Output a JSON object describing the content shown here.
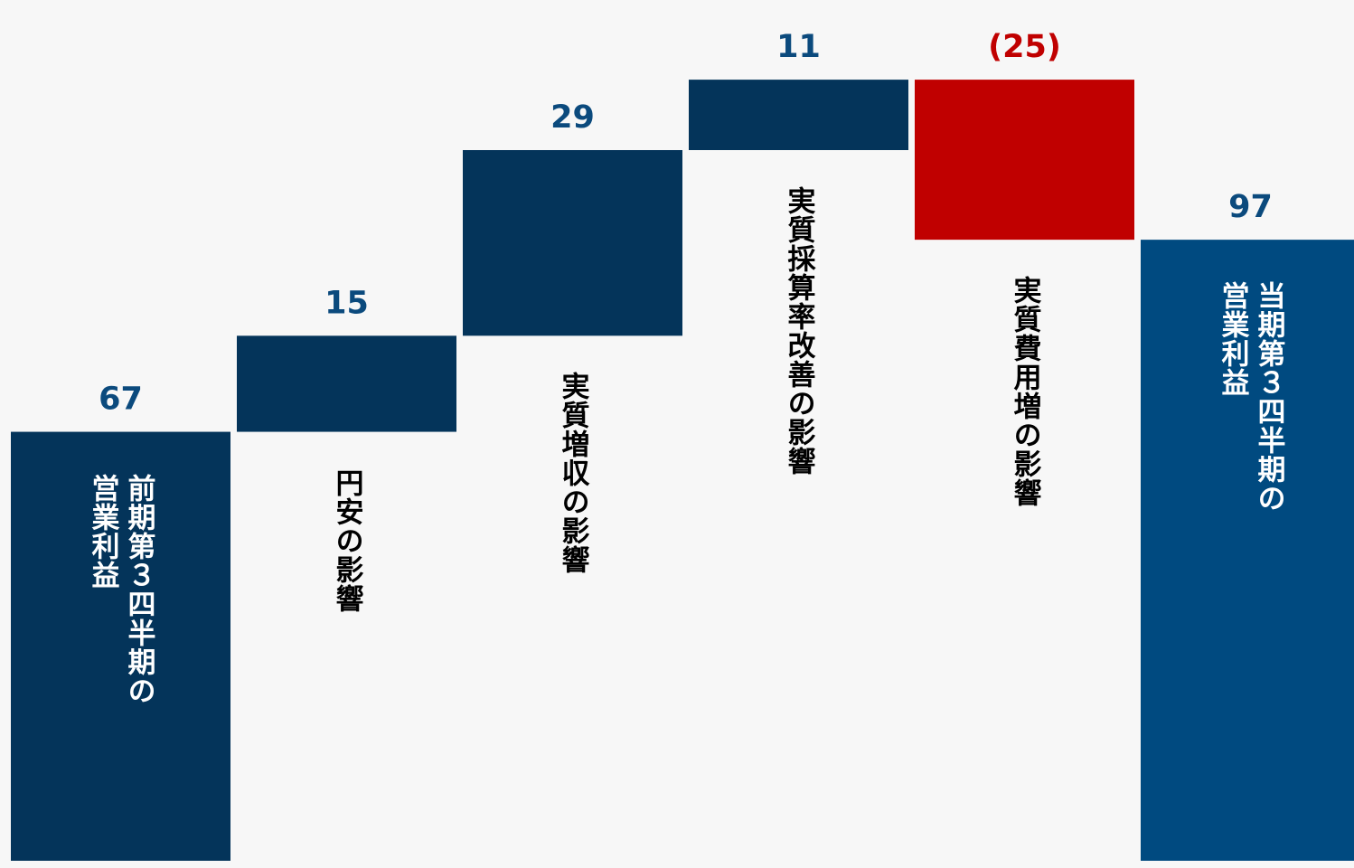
{
  "chart_data": {
    "type": "waterfall",
    "title": "",
    "xlabel": "",
    "ylabel": "",
    "ylim": [
      0,
      111
    ],
    "categories": [
      "前期第３四半期の\n営業利益",
      "円安の影響",
      "実質増収の影響",
      "実質採算率改善の影響",
      "実質費用増の影響",
      "当期第３四半期の\n営業利益"
    ],
    "values": [
      67,
      15,
      29,
      11,
      -25,
      97
    ],
    "data_labels": [
      "67",
      "15",
      "29",
      "11",
      "(25)",
      "97"
    ],
    "kinds": [
      "total",
      "delta",
      "delta",
      "delta",
      "delta",
      "total"
    ],
    "colors": {
      "total_start": "#04345a",
      "increase": "#04345a",
      "decrease": "#c00000",
      "total_end": "#004a80",
      "label_positive": "#0b4a7d",
      "label_negative": "#c00000",
      "category_text_on_bar": "#ffffff",
      "category_text_default": "#000000"
    }
  }
}
